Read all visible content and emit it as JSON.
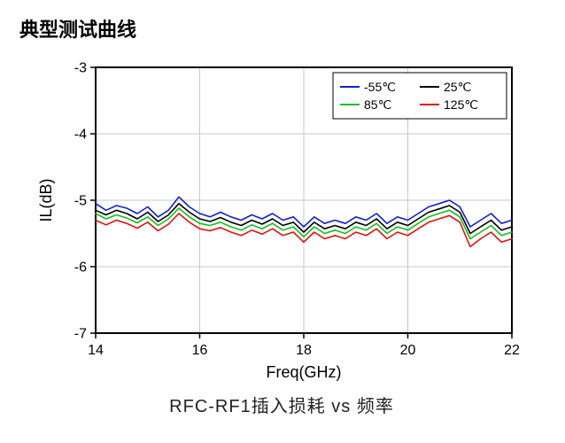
{
  "page_title": "典型测试曲线",
  "caption": "RFC-RF1插入损耗 vs 频率",
  "chart": {
    "type": "line",
    "background_color": "#ffffff",
    "plot_border_color": "#000000",
    "plot_border_width": 2,
    "grid_color": "#c8c8c8",
    "grid_width": 1,
    "tick_length": 6,
    "axis_label_fontsize": 18,
    "tick_label_fontsize": 16,
    "tick_label_color": "#000000",
    "x": {
      "label": "Freq(GHz)",
      "lim": [
        14,
        22
      ],
      "ticks": [
        14,
        16,
        18,
        20,
        22
      ]
    },
    "y": {
      "label": "IL(dB)",
      "lim": [
        -7,
        -3
      ],
      "ticks": [
        -7,
        -6,
        -5,
        -4,
        -3
      ]
    },
    "legend": {
      "position": "top-right",
      "border_color": "#000000",
      "bg_color": "#ffffff",
      "fontsize": 14,
      "items": [
        {
          "label": "-55℃",
          "color": "#1020d0"
        },
        {
          "label": "25℃",
          "color": "#000000"
        },
        {
          "label": "85℃",
          "color": "#10c020"
        },
        {
          "label": "125℃",
          "color": "#e01010"
        }
      ]
    },
    "line_width": 1.6,
    "x_values": [
      14.0,
      14.2,
      14.4,
      14.6,
      14.8,
      15.0,
      15.2,
      15.4,
      15.6,
      15.8,
      16.0,
      16.2,
      16.4,
      16.6,
      16.8,
      17.0,
      17.2,
      17.4,
      17.6,
      17.8,
      18.0,
      18.2,
      18.4,
      18.6,
      18.8,
      19.0,
      19.2,
      19.4,
      19.6,
      19.8,
      20.0,
      20.2,
      20.4,
      20.6,
      20.8,
      21.0,
      21.2,
      21.4,
      21.6,
      21.8,
      22.0
    ],
    "series": [
      {
        "name": "-55℃",
        "color": "#1020d0",
        "y": [
          -5.05,
          -5.15,
          -5.08,
          -5.12,
          -5.2,
          -5.1,
          -5.25,
          -5.15,
          -4.95,
          -5.1,
          -5.2,
          -5.25,
          -5.18,
          -5.25,
          -5.3,
          -5.22,
          -5.28,
          -5.2,
          -5.3,
          -5.25,
          -5.4,
          -5.25,
          -5.35,
          -5.3,
          -5.35,
          -5.25,
          -5.3,
          -5.2,
          -5.35,
          -5.25,
          -5.3,
          -5.2,
          -5.1,
          -5.05,
          -5.0,
          -5.1,
          -5.4,
          -5.3,
          -5.2,
          -5.35,
          -5.3
        ]
      },
      {
        "name": "25℃",
        "color": "#000000",
        "y": [
          -5.15,
          -5.22,
          -5.15,
          -5.2,
          -5.28,
          -5.18,
          -5.32,
          -5.22,
          -5.05,
          -5.18,
          -5.28,
          -5.32,
          -5.26,
          -5.33,
          -5.38,
          -5.3,
          -5.36,
          -5.28,
          -5.38,
          -5.33,
          -5.48,
          -5.33,
          -5.43,
          -5.38,
          -5.43,
          -5.33,
          -5.38,
          -5.28,
          -5.43,
          -5.33,
          -5.38,
          -5.28,
          -5.18,
          -5.13,
          -5.08,
          -5.18,
          -5.5,
          -5.4,
          -5.3,
          -5.45,
          -5.4
        ]
      },
      {
        "name": "85℃",
        "color": "#10c020",
        "y": [
          -5.2,
          -5.28,
          -5.22,
          -5.27,
          -5.34,
          -5.25,
          -5.38,
          -5.28,
          -5.12,
          -5.25,
          -5.35,
          -5.38,
          -5.33,
          -5.4,
          -5.45,
          -5.37,
          -5.43,
          -5.35,
          -5.45,
          -5.4,
          -5.55,
          -5.4,
          -5.5,
          -5.45,
          -5.5,
          -5.4,
          -5.45,
          -5.35,
          -5.5,
          -5.4,
          -5.45,
          -5.35,
          -5.25,
          -5.2,
          -5.15,
          -5.25,
          -5.58,
          -5.48,
          -5.38,
          -5.53,
          -5.48
        ]
      },
      {
        "name": "125℃",
        "color": "#e01010",
        "y": [
          -5.3,
          -5.37,
          -5.3,
          -5.35,
          -5.42,
          -5.33,
          -5.46,
          -5.36,
          -5.2,
          -5.33,
          -5.43,
          -5.46,
          -5.41,
          -5.48,
          -5.53,
          -5.45,
          -5.51,
          -5.43,
          -5.53,
          -5.48,
          -5.63,
          -5.48,
          -5.58,
          -5.53,
          -5.58,
          -5.48,
          -5.53,
          -5.43,
          -5.58,
          -5.48,
          -5.53,
          -5.43,
          -5.33,
          -5.28,
          -5.23,
          -5.33,
          -5.7,
          -5.58,
          -5.48,
          -5.63,
          -5.58
        ]
      }
    ]
  }
}
